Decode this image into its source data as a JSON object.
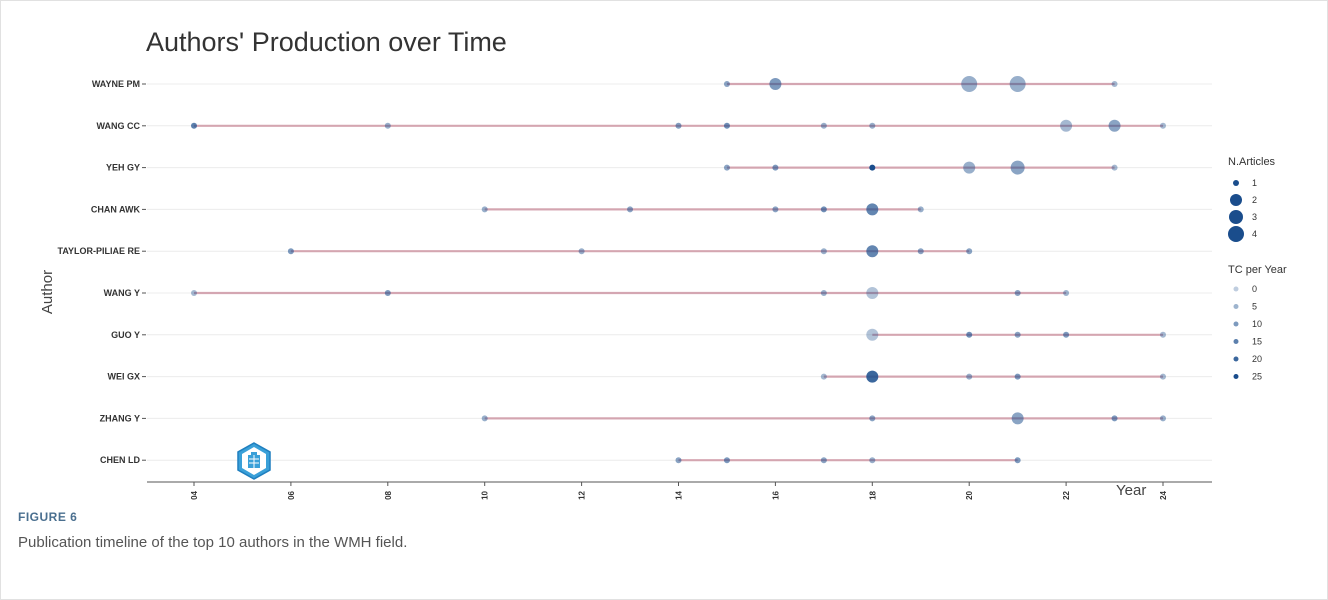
{
  "figure_label": "FIGURE 6",
  "caption": "Publication timeline of the top 10 authors in the WMH field.",
  "chart_data": {
    "type": "scatter",
    "title": "Authors' Production over Time",
    "xlabel": "Year",
    "ylabel": "Author",
    "xlim": [
      2004,
      2024
    ],
    "x_ticks": [
      2004,
      2006,
      2008,
      2010,
      2012,
      2014,
      2016,
      2018,
      2020,
      2022,
      2024
    ],
    "authors": [
      "WAYNE PM",
      "WANG CC",
      "YEH GY",
      "CHAN AWK",
      "TAYLOR-PILIAE RE",
      "WANG Y",
      "GUO Y",
      "WEI GX",
      "ZHANG Y",
      "CHEN LD"
    ],
    "series": [
      {
        "author": "WAYNE PM",
        "points": [
          {
            "year": 2015,
            "articles": 1,
            "tc": 8
          },
          {
            "year": 2016,
            "articles": 2,
            "tc": 10
          },
          {
            "year": 2020,
            "articles": 4,
            "tc": 6
          },
          {
            "year": 2021,
            "articles": 4,
            "tc": 6
          },
          {
            "year": 2023,
            "articles": 1,
            "tc": 4
          }
        ]
      },
      {
        "author": "WANG CC",
        "points": [
          {
            "year": 2004,
            "articles": 1,
            "tc": 15
          },
          {
            "year": 2008,
            "articles": 1,
            "tc": 6
          },
          {
            "year": 2014,
            "articles": 1,
            "tc": 9
          },
          {
            "year": 2015,
            "articles": 1,
            "tc": 12
          },
          {
            "year": 2017,
            "articles": 1,
            "tc": 6
          },
          {
            "year": 2018,
            "articles": 1,
            "tc": 6
          },
          {
            "year": 2022,
            "articles": 2,
            "tc": 4
          },
          {
            "year": 2023,
            "articles": 2,
            "tc": 8
          },
          {
            "year": 2024,
            "articles": 1,
            "tc": 4
          }
        ]
      },
      {
        "author": "YEH GY",
        "points": [
          {
            "year": 2015,
            "articles": 1,
            "tc": 8
          },
          {
            "year": 2016,
            "articles": 1,
            "tc": 10
          },
          {
            "year": 2018,
            "articles": 1,
            "tc": 25
          },
          {
            "year": 2020,
            "articles": 2,
            "tc": 6
          },
          {
            "year": 2021,
            "articles": 3,
            "tc": 8
          },
          {
            "year": 2023,
            "articles": 1,
            "tc": 4
          }
        ]
      },
      {
        "author": "CHAN AWK",
        "points": [
          {
            "year": 2010,
            "articles": 1,
            "tc": 6
          },
          {
            "year": 2013,
            "articles": 1,
            "tc": 8
          },
          {
            "year": 2016,
            "articles": 1,
            "tc": 8
          },
          {
            "year": 2017,
            "articles": 1,
            "tc": 12
          },
          {
            "year": 2018,
            "articles": 2,
            "tc": 14
          },
          {
            "year": 2019,
            "articles": 1,
            "tc": 6
          }
        ]
      },
      {
        "author": "TAYLOR-PILIAE RE",
        "points": [
          {
            "year": 2006,
            "articles": 1,
            "tc": 10
          },
          {
            "year": 2012,
            "articles": 1,
            "tc": 6
          },
          {
            "year": 2017,
            "articles": 1,
            "tc": 6
          },
          {
            "year": 2018,
            "articles": 2,
            "tc": 14
          },
          {
            "year": 2019,
            "articles": 1,
            "tc": 8
          },
          {
            "year": 2020,
            "articles": 1,
            "tc": 8
          }
        ]
      },
      {
        "author": "WANG Y",
        "points": [
          {
            "year": 2004,
            "articles": 1,
            "tc": 4
          },
          {
            "year": 2008,
            "articles": 1,
            "tc": 10
          },
          {
            "year": 2017,
            "articles": 1,
            "tc": 6
          },
          {
            "year": 2018,
            "articles": 2,
            "tc": 2
          },
          {
            "year": 2021,
            "articles": 1,
            "tc": 8
          },
          {
            "year": 2022,
            "articles": 1,
            "tc": 5
          }
        ]
      },
      {
        "author": "GUO Y",
        "points": [
          {
            "year": 2018,
            "articles": 2,
            "tc": 2
          },
          {
            "year": 2020,
            "articles": 1,
            "tc": 12
          },
          {
            "year": 2021,
            "articles": 1,
            "tc": 8
          },
          {
            "year": 2022,
            "articles": 1,
            "tc": 10
          },
          {
            "year": 2024,
            "articles": 1,
            "tc": 4
          }
        ]
      },
      {
        "author": "WEI GX",
        "points": [
          {
            "year": 2017,
            "articles": 1,
            "tc": 4
          },
          {
            "year": 2018,
            "articles": 2,
            "tc": 20
          },
          {
            "year": 2020,
            "articles": 1,
            "tc": 6
          },
          {
            "year": 2021,
            "articles": 1,
            "tc": 10
          },
          {
            "year": 2024,
            "articles": 1,
            "tc": 4
          }
        ]
      },
      {
        "author": "ZHANG Y",
        "points": [
          {
            "year": 2010,
            "articles": 1,
            "tc": 6
          },
          {
            "year": 2018,
            "articles": 1,
            "tc": 8
          },
          {
            "year": 2021,
            "articles": 2,
            "tc": 8
          },
          {
            "year": 2023,
            "articles": 1,
            "tc": 10
          },
          {
            "year": 2024,
            "articles": 1,
            "tc": 6
          }
        ]
      },
      {
        "author": "CHEN LD",
        "points": [
          {
            "year": 2014,
            "articles": 1,
            "tc": 8
          },
          {
            "year": 2015,
            "articles": 1,
            "tc": 10
          },
          {
            "year": 2017,
            "articles": 1,
            "tc": 8
          },
          {
            "year": 2018,
            "articles": 1,
            "tc": 6
          },
          {
            "year": 2021,
            "articles": 1,
            "tc": 10
          }
        ]
      }
    ],
    "legend": {
      "placement": "right",
      "size_title": "N.Articles",
      "size_values": [
        1,
        2,
        3,
        4
      ],
      "color_title": "TC per Year",
      "color_values": [
        0,
        5,
        10,
        15,
        20,
        25
      ]
    },
    "colors": {
      "point": "#1a4d8c",
      "segment": "#c98c9b",
      "grid": "#ececec",
      "axis": "#555555"
    },
    "grid": true
  },
  "logo_icon": "shield-logo-icon"
}
